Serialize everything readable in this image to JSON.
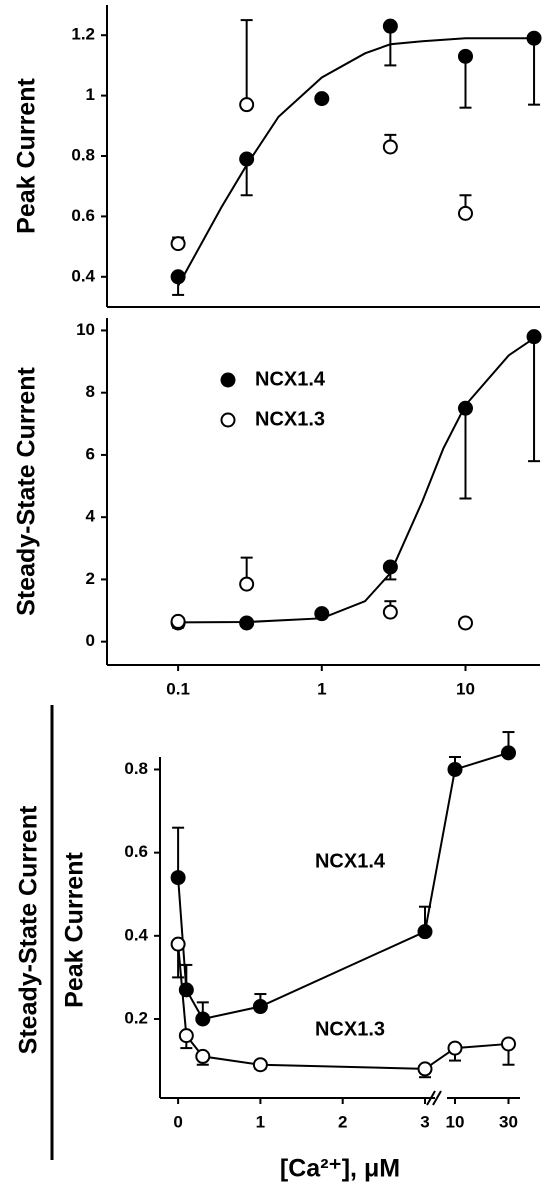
{
  "chart_data": [
    {
      "type": "scatter",
      "ylabel": "Peak Current",
      "xscale": "log",
      "x": [
        0.1,
        0.3,
        1,
        3,
        10,
        30
      ],
      "xlim": [
        0.032,
        33
      ],
      "ylim": [
        0.3,
        1.3
      ],
      "yticks": [
        0.4,
        0.6,
        0.8,
        1.0,
        1.2
      ],
      "series": [
        {
          "fill": "#000000",
          "err_dir": "down",
          "values": [
            0.4,
            0.79,
            0.99,
            1.23,
            1.13,
            1.19
          ],
          "errors": [
            0.06,
            0.12,
            null,
            0.13,
            0.17,
            0.22
          ]
        },
        {
          "fill": "#ffffff",
          "err_dir": "up",
          "values": [
            0.51,
            0.97,
            null,
            0.83,
            0.61,
            null
          ],
          "errors": [
            0.02,
            0.28,
            null,
            0.04,
            0.06,
            null
          ]
        }
      ],
      "fit": {
        "x": [
          0.1,
          0.2,
          0.3,
          0.5,
          1,
          2,
          3,
          5,
          10,
          20,
          30
        ],
        "values": [
          0.37,
          0.63,
          0.77,
          0.93,
          1.06,
          1.14,
          1.17,
          1.18,
          1.19,
          1.19,
          1.19
        ]
      }
    },
    {
      "type": "scatter",
      "ylabel": "Steady-State Current",
      "xscale": "log",
      "legend": true,
      "x": [
        0.1,
        0.3,
        1,
        3,
        10,
        30
      ],
      "xlim": [
        0.032,
        33
      ],
      "xticks": [
        0.1,
        1,
        10
      ],
      "ylim": [
        -0.75,
        10.4
      ],
      "yticks": [
        0,
        2,
        4,
        6,
        8,
        10
      ],
      "series": [
        {
          "name": "NCX1.4",
          "fill": "#000000",
          "err_dir": "down",
          "values": [
            0.6,
            0.6,
            0.9,
            2.4,
            7.5,
            9.8
          ],
          "errors": [
            0.15,
            null,
            null,
            0.4,
            2.9,
            4.0
          ]
        },
        {
          "name": "NCX1.3",
          "fill": "#ffffff",
          "err_dir": "up",
          "values": [
            0.65,
            1.85,
            null,
            0.95,
            0.6,
            null
          ],
          "errors": [
            null,
            0.85,
            null,
            0.35,
            0.05,
            null
          ]
        }
      ],
      "fit": {
        "x": [
          0.1,
          0.3,
          1,
          2,
          3,
          5,
          7,
          10,
          20,
          30
        ],
        "values": [
          0.62,
          0.63,
          0.75,
          1.3,
          2.2,
          4.5,
          6.2,
          7.6,
          9.2,
          9.75
        ]
      }
    },
    {
      "type": "line",
      "ylabel_top": "Steady-State Current",
      "ylabel_bottom": "Peak Current",
      "xlabel": "[Ca²⁺], μM",
      "xscale": "broken",
      "x_break": [
        3,
        10
      ],
      "x": [
        0,
        0.1,
        0.3,
        1,
        3,
        10,
        30
      ],
      "xlim": [
        -0.22,
        38
      ],
      "xticks": [
        0,
        1,
        2,
        3,
        10,
        30
      ],
      "ylim": [
        0.01,
        0.83
      ],
      "yticks": [
        0.2,
        0.4,
        0.6,
        0.8
      ],
      "series": [
        {
          "name": "NCX1.4",
          "fill": "#000000",
          "err_dir": "up",
          "values": [
            0.54,
            0.27,
            0.2,
            0.23,
            0.41,
            0.8,
            0.84
          ],
          "errors": [
            0.12,
            0.06,
            0.04,
            0.03,
            0.06,
            0.03,
            0.05
          ]
        },
        {
          "name": "NCX1.3",
          "fill": "#ffffff",
          "err_dir": "down",
          "values": [
            0.38,
            0.16,
            0.11,
            0.09,
            0.08,
            0.13,
            0.14
          ],
          "errors": [
            0.08,
            0.03,
            0.02,
            0.01,
            0.02,
            0.03,
            0.05
          ]
        }
      ]
    }
  ]
}
